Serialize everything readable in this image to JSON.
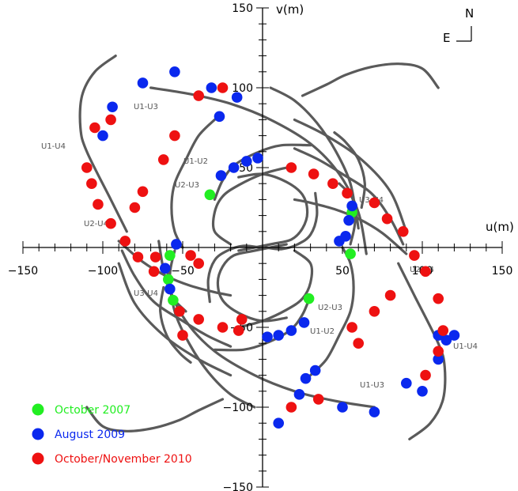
{
  "chart_data": {
    "type": "scatter",
    "title": "",
    "xlabel": "u(m)",
    "ylabel": "v(m)",
    "xlim": [
      -150,
      150
    ],
    "ylim": [
      -150,
      150
    ],
    "x_ticks": [
      -150,
      -100,
      -50,
      50,
      100,
      150
    ],
    "y_ticks": [
      -150,
      -100,
      -50,
      50,
      100,
      150
    ],
    "compass": {
      "north": "N",
      "east": "E"
    },
    "legend_position": "bottom-left",
    "tracks": [
      {
        "name": "U1-U2",
        "points": [
          [
            -15,
            -50
          ],
          [
            0,
            -46
          ],
          [
            15,
            -39
          ],
          [
            25,
            -32
          ],
          [
            30,
            -22
          ],
          [
            30,
            -10
          ],
          [
            20,
            -2
          ]
        ]
      },
      {
        "name": "U1-U2",
        "points": [
          [
            15,
            2
          ],
          [
            -5,
            -2
          ],
          [
            -18,
            -5
          ],
          [
            -25,
            -12
          ],
          [
            -28,
            -22
          ],
          [
            -25,
            -33
          ],
          [
            -15,
            -41
          ],
          [
            0,
            -46
          ],
          [
            15,
            -44
          ]
        ]
      },
      {
        "name": "U1-U3",
        "points": [
          [
            -55,
            -2
          ],
          [
            -58,
            -18
          ],
          [
            -55,
            -40
          ],
          [
            -46,
            -60
          ],
          [
            -34,
            -78
          ],
          [
            -20,
            -92
          ],
          [
            -5,
            -100
          ]
        ]
      },
      {
        "name": "U1-U3",
        "points": [
          [
            30,
            -80
          ],
          [
            40,
            -70
          ],
          [
            48,
            -55
          ],
          [
            55,
            -40
          ],
          [
            57,
            -25
          ],
          [
            55,
            -10
          ],
          [
            50,
            0
          ]
        ]
      },
      {
        "name": "U1-U3",
        "points": [
          [
            65,
            -4
          ],
          [
            60,
            22
          ],
          [
            48,
            46
          ],
          [
            30,
            65
          ],
          [
            5,
            80
          ],
          [
            -20,
            90
          ],
          [
            -45,
            96
          ],
          [
            -70,
            100
          ]
        ]
      },
      {
        "name": "U1-U4",
        "points": [
          [
            -20,
            -80
          ],
          [
            -40,
            -70
          ],
          [
            -62,
            -55
          ],
          [
            -80,
            -35
          ],
          [
            -90,
            -10
          ]
        ]
      },
      {
        "name": "U1-U4",
        "points": [
          [
            85,
            -10
          ],
          [
            95,
            -30
          ],
          [
            110,
            -60
          ],
          [
            114,
            -75
          ],
          [
            113,
            -95
          ],
          [
            105,
            -110
          ],
          [
            92,
            -120
          ]
        ]
      },
      {
        "name": "U1-U4",
        "points": [
          [
            -110,
            -100
          ],
          [
            -100,
            -112
          ],
          [
            -85,
            -115
          ],
          [
            -68,
            -113
          ],
          [
            -52,
            -108
          ],
          [
            -40,
            -102
          ],
          [
            -25,
            -95
          ]
        ]
      },
      {
        "name": "U2-U3",
        "points": [
          [
            30,
            -30
          ],
          [
            25,
            -42
          ],
          [
            17,
            -52
          ],
          [
            2,
            -60
          ],
          [
            -12,
            -64
          ],
          [
            -30,
            -64
          ]
        ]
      },
      {
        "name": "U2-U3",
        "points": [
          [
            -33,
            -34
          ],
          [
            -34,
            -20
          ],
          [
            -30,
            -8
          ],
          [
            -22,
            -2
          ],
          [
            -12,
            1
          ],
          [
            -2,
            0
          ]
        ]
      },
      {
        "name": "U2-U4",
        "points": [
          [
            -88,
            -2
          ],
          [
            -80,
            -18
          ],
          [
            -68,
            -34
          ],
          [
            -50,
            -46
          ],
          [
            -35,
            -55
          ],
          [
            -20,
            -62
          ]
        ]
      },
      {
        "name": "U2-U4",
        "points": [
          [
            90,
            -4
          ],
          [
            75,
            9
          ],
          [
            60,
            18
          ],
          [
            45,
            24
          ],
          [
            30,
            28
          ],
          [
            20,
            30
          ]
        ]
      },
      {
        "name": "U3-U4",
        "points": [
          [
            -62,
            -25
          ],
          [
            -64,
            -40
          ],
          [
            -60,
            -55
          ],
          [
            -52,
            -66
          ],
          [
            -45,
            -72
          ]
        ]
      },
      {
        "name": "U3-U4",
        "points": [
          [
            60,
            12
          ],
          [
            58,
            25
          ],
          [
            55,
            33
          ],
          [
            48,
            40
          ]
        ]
      }
    ],
    "track_labels": [
      "U1-U2",
      "U1-U3",
      "U1-U4",
      "U2-U3",
      "U2-U4",
      "U3-U4",
      "U1-U2",
      "U1-U3",
      "U1-U4",
      "U2-U3",
      "U2-U4",
      "U3-U4"
    ],
    "series": [
      {
        "name": "October 2007",
        "color": "#22ee22",
        "points": [
          [
            -58,
            -5
          ],
          [
            -59,
            -20
          ],
          [
            -56,
            -33
          ],
          [
            -33,
            33
          ],
          [
            55,
            -4
          ],
          [
            56,
            22
          ],
          [
            29,
            -32
          ]
        ]
      },
      {
        "name": "August 2009",
        "color": "#0a28ee",
        "points": [
          [
            -54,
            2
          ],
          [
            -61,
            -13
          ],
          [
            -58,
            -26
          ],
          [
            -26,
            45
          ],
          [
            -18,
            50
          ],
          [
            -10,
            54
          ],
          [
            -3,
            56
          ],
          [
            3,
            -56
          ],
          [
            10,
            -55
          ],
          [
            18,
            -52
          ],
          [
            26,
            -47
          ],
          [
            48,
            4
          ],
          [
            52,
            7
          ],
          [
            54,
            17
          ],
          [
            56,
            26
          ],
          [
            23,
            -92
          ],
          [
            27,
            -82
          ],
          [
            33,
            -77
          ],
          [
            -100,
            70
          ],
          [
            -94,
            88
          ],
          [
            -75,
            103
          ],
          [
            -55,
            110
          ],
          [
            -32,
            100
          ],
          [
            -27,
            82
          ],
          [
            -16,
            94
          ],
          [
            10,
            -110
          ],
          [
            50,
            -100
          ],
          [
            70,
            -103
          ],
          [
            90,
            -85
          ],
          [
            110,
            -70
          ],
          [
            115,
            -58
          ],
          [
            120,
            -55
          ],
          [
            110,
            -55
          ],
          [
            100,
            -90
          ]
        ]
      },
      {
        "name": "October/November 2010",
        "color": "#ee1111",
        "points": [
          [
            -110,
            50
          ],
          [
            -107,
            40
          ],
          [
            -103,
            27
          ],
          [
            -95,
            15
          ],
          [
            -86,
            4
          ],
          [
            -78,
            -6
          ],
          [
            -68,
            -15
          ],
          [
            -52,
            -40
          ],
          [
            -40,
            -45
          ],
          [
            -25,
            -50
          ],
          [
            -15,
            -52
          ],
          [
            -50,
            -55
          ],
          [
            -80,
            25
          ],
          [
            -75,
            35
          ],
          [
            -67,
            -6
          ],
          [
            -45,
            -5
          ],
          [
            -40,
            -10
          ],
          [
            -62,
            55
          ],
          [
            -55,
            70
          ],
          [
            -40,
            95
          ],
          [
            -25,
            100
          ],
          [
            -95,
            80
          ],
          [
            -105,
            75
          ],
          [
            18,
            50
          ],
          [
            32,
            46
          ],
          [
            44,
            40
          ],
          [
            53,
            34
          ],
          [
            70,
            28
          ],
          [
            78,
            18
          ],
          [
            88,
            10
          ],
          [
            95,
            -5
          ],
          [
            102,
            -15
          ],
          [
            110,
            -32
          ],
          [
            113,
            -52
          ],
          [
            110,
            -65
          ],
          [
            102,
            -80
          ],
          [
            56,
            -50
          ],
          [
            70,
            -40
          ],
          [
            80,
            -30
          ],
          [
            60,
            -60
          ],
          [
            18,
            -100
          ],
          [
            35,
            -95
          ],
          [
            -13,
            -45
          ]
        ]
      }
    ]
  },
  "legend": {
    "items": [
      {
        "label": "October 2007",
        "color": "#22ee22"
      },
      {
        "label": "August 2009",
        "color": "#0a28ee"
      },
      {
        "label": "October/November 2010",
        "color": "#ee1111"
      }
    ]
  }
}
